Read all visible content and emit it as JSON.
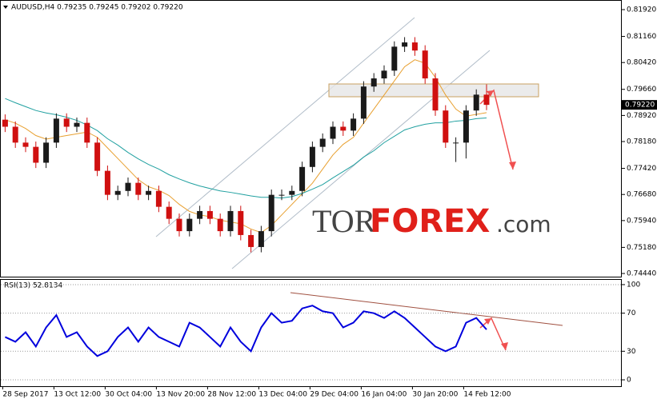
{
  "chart_data": [
    {
      "type": "candlestick",
      "title": "AUDUSD,H4 0.79235 0.79245 0.79202 0.79220",
      "categories": [
        "28 Sep 2017",
        null,
        null,
        null,
        null,
        "13 Oct 12:00",
        null,
        null,
        null,
        null,
        "30 Oct 04:00",
        null,
        null,
        null,
        null,
        "13 Nov 20:00",
        null,
        null,
        null,
        null,
        "28 Nov 12:00",
        null,
        null,
        null,
        null,
        "13 Dec 04:00",
        null,
        null,
        null,
        null,
        "29 Dec 04:00",
        null,
        null,
        null,
        null,
        "16 Jan 04:00",
        null,
        null,
        null,
        null,
        "30 Jan 20:00",
        null,
        null,
        null,
        null,
        "14 Feb 12:00",
        null,
        null
      ],
      "open": [
        0.788,
        0.786,
        0.7815,
        0.7803,
        0.7758,
        0.7815,
        0.7883,
        0.786,
        0.7871,
        0.7815,
        0.7735,
        0.7667,
        0.7678,
        0.7701,
        0.7667,
        0.7678,
        0.7633,
        0.7599,
        0.7564,
        0.7599,
        0.7621,
        0.7599,
        0.7564,
        0.7621,
        0.7553,
        0.7519,
        0.7564,
        0.7667,
        0.7667,
        0.7678,
        0.7746,
        0.7803,
        0.7826,
        0.786,
        0.7849,
        0.7883,
        0.7974,
        0.7997,
        0.8019,
        0.8087,
        0.8099,
        0.8076,
        0.7997,
        0.7906,
        0.7815,
        0.7815,
        0.7906,
        0.7951
      ],
      "high": [
        0.7895,
        0.7875,
        0.783,
        0.7818,
        0.783,
        0.7898,
        0.7898,
        0.7886,
        0.7886,
        0.783,
        0.775,
        0.7693,
        0.7716,
        0.7716,
        0.7693,
        0.7693,
        0.7648,
        0.7614,
        0.7614,
        0.7636,
        0.7636,
        0.7614,
        0.7636,
        0.7636,
        0.7568,
        0.7579,
        0.7682,
        0.7682,
        0.7693,
        0.7761,
        0.7818,
        0.7841,
        0.7875,
        0.7875,
        0.7898,
        0.7989,
        0.8012,
        0.8034,
        0.8102,
        0.8114,
        0.8114,
        0.8091,
        0.8012,
        0.7921,
        0.783,
        0.7921,
        0.7966,
        0.798
      ],
      "low": [
        0.7845,
        0.78,
        0.7788,
        0.7743,
        0.7743,
        0.78,
        0.7845,
        0.7845,
        0.78,
        0.772,
        0.7652,
        0.7652,
        0.7663,
        0.7652,
        0.7652,
        0.7618,
        0.7584,
        0.7549,
        0.7549,
        0.7584,
        0.7584,
        0.7549,
        0.7549,
        0.7538,
        0.7504,
        0.7504,
        0.7549,
        0.7652,
        0.7652,
        0.7663,
        0.7731,
        0.7788,
        0.7811,
        0.7834,
        0.7834,
        0.7868,
        0.7959,
        0.7982,
        0.8004,
        0.8072,
        0.8061,
        0.7982,
        0.7891,
        0.78,
        0.776,
        0.777,
        0.7891,
        0.7907
      ],
      "close": [
        0.786,
        0.7815,
        0.7803,
        0.7758,
        0.7815,
        0.7883,
        0.786,
        0.7871,
        0.7815,
        0.7735,
        0.7667,
        0.7678,
        0.7701,
        0.7667,
        0.7678,
        0.7633,
        0.7599,
        0.7564,
        0.7599,
        0.7621,
        0.7599,
        0.7564,
        0.7621,
        0.7553,
        0.7519,
        0.7564,
        0.7667,
        0.7667,
        0.7678,
        0.7746,
        0.7803,
        0.7826,
        0.786,
        0.7849,
        0.7883,
        0.7974,
        0.7997,
        0.8019,
        0.8087,
        0.8099,
        0.8076,
        0.7997,
        0.7906,
        0.7815,
        0.7815,
        0.7906,
        0.7951,
        0.7922
      ],
      "up_color": "#1a1a1a",
      "down_color": "#d01010",
      "lines": [
        {
          "color": "#e8a030",
          "values": [
            0.788,
            0.787,
            0.7855,
            0.7835,
            0.7825,
            0.783,
            0.7835,
            0.784,
            0.7845,
            0.783,
            0.78,
            0.777,
            0.774,
            0.771,
            0.769,
            0.768,
            0.7665,
            0.764,
            0.762,
            0.761,
            0.7605,
            0.7595,
            0.759,
            0.7585,
            0.757,
            0.756,
            0.758,
            0.761,
            0.764,
            0.767,
            0.77,
            0.774,
            0.778,
            0.781,
            0.783,
            0.787,
            0.791,
            0.795,
            0.799,
            0.803,
            0.805,
            0.804,
            0.8,
            0.795,
            0.791,
            0.789,
            0.7895,
            0.79
          ]
        },
        {
          "color": "#20a0a0",
          "values": [
            0.794,
            0.7928,
            0.7917,
            0.7906,
            0.7899,
            0.7894,
            0.7887,
            0.7878,
            0.7865,
            0.7849,
            0.7826,
            0.7808,
            0.7787,
            0.7769,
            0.7753,
            0.774,
            0.7724,
            0.7712,
            0.7701,
            0.7692,
            0.7685,
            0.7678,
            0.7674,
            0.7669,
            0.7664,
            0.766,
            0.766,
            0.7658,
            0.7662,
            0.7671,
            0.7683,
            0.7696,
            0.7715,
            0.7733,
            0.7751,
            0.7774,
            0.7792,
            0.7815,
            0.7833,
            0.7851,
            0.786,
            0.7867,
            0.7871,
            0.7871,
            0.7876,
            0.7878,
            0.7883,
            0.7885
          ]
        }
      ],
      "last_label": "0.79220",
      "ylim": [
        0.7435,
        0.8217
      ],
      "yticks": [
        {
          "value": 0.8192,
          "label": "0.81920"
        },
        {
          "value": 0.8116,
          "label": "0.81160"
        },
        {
          "value": 0.8042,
          "label": "0.80420"
        },
        {
          "value": 0.7966,
          "label": "0.79660"
        },
        {
          "value": 0.7892,
          "label": "0.78920"
        },
        {
          "value": 0.7818,
          "label": "0.78180"
        },
        {
          "value": 0.7742,
          "label": "0.77420"
        },
        {
          "value": 0.7668,
          "label": "0.76680"
        },
        {
          "value": 0.7594,
          "label": "0.75940"
        },
        {
          "value": 0.7518,
          "label": "0.75180"
        },
        {
          "value": 0.7444,
          "label": "0.74440"
        }
      ],
      "watermark": [
        "TOR",
        "FOREX",
        ".com"
      ]
    },
    {
      "type": "line",
      "title": "RSI(13) 52.8134",
      "color": "#0000dd",
      "values": [
        45,
        40,
        50,
        35,
        55,
        68,
        45,
        50,
        35,
        25,
        30,
        45,
        55,
        40,
        55,
        45,
        40,
        35,
        60,
        55,
        45,
        35,
        55,
        40,
        30,
        55,
        70,
        60,
        62,
        75,
        78,
        72,
        70,
        55,
        60,
        72,
        70,
        65,
        72,
        65,
        55,
        45,
        35,
        30,
        35,
        60,
        65,
        52.8134
      ],
      "ylim": [
        -6.7,
        105
      ],
      "yticks": [
        0,
        30,
        70,
        100
      ]
    }
  ]
}
